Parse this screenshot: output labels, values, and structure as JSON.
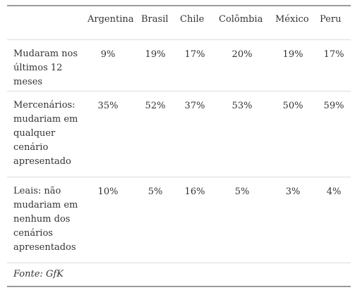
{
  "table": {
    "columns": [
      "Argentina",
      "Brasil",
      "Chile",
      "Colômbia",
      "México",
      "Peru"
    ],
    "rows": [
      {
        "label": "Mudaram nos últimos 12 meses",
        "values": [
          "9%",
          "19%",
          "17%",
          "20%",
          "19%",
          "17%"
        ]
      },
      {
        "label": "Mercenários: mudariam em qualquer cenário apresentado",
        "values": [
          "35%",
          "52%",
          "37%",
          "53%",
          "50%",
          "59%"
        ]
      },
      {
        "label": "Leais: não mudariam em nenhum dos cenários apresentados",
        "values": [
          "10%",
          "5%",
          "16%",
          "5%",
          "3%",
          "4%"
        ]
      }
    ],
    "source": "Fonte: GfK"
  }
}
